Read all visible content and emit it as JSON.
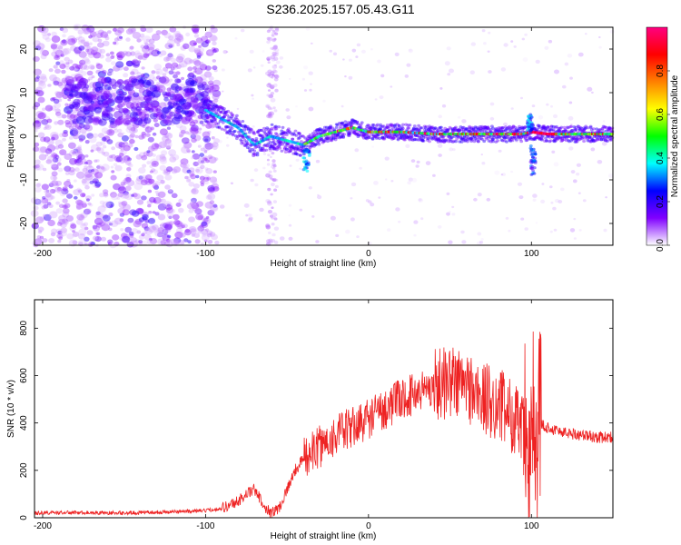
{
  "figure": {
    "title": "S236.2025.157.05.43.G11"
  },
  "chart_data": [
    {
      "type": "heatmap",
      "xlabel": "Height of straight line (km)",
      "ylabel": "Frequency (Hz)",
      "xlim": [
        -205,
        150
      ],
      "ylim": [
        -25,
        25
      ],
      "xticks": [
        -200,
        -100,
        0,
        100
      ],
      "yticks": [
        -20,
        -10,
        0,
        10,
        20
      ],
      "colorbar": {
        "label": "Normalized spectral amplitude",
        "range": [
          0,
          1
        ],
        "ticks": [
          0.0,
          0.2,
          0.4,
          0.6,
          0.8
        ],
        "tick_labels": [
          "0.0",
          "0.2",
          "0.4",
          "0.6",
          "0.8"
        ],
        "colors": [
          "#ffffff",
          "#8000ff",
          "#0000ff",
          "#00ffff",
          "#00ff00",
          "#ffff00",
          "#ff8000",
          "#ff0000",
          "#ff0080"
        ]
      },
      "ridge": {
        "x": [
          -100,
          -90,
          -80,
          -70,
          -60,
          -50,
          -40,
          -30,
          -20,
          -10,
          0,
          20,
          40,
          60,
          80,
          95,
          100,
          110,
          130,
          150
        ],
        "freq": [
          6,
          4,
          2,
          -2,
          0,
          -1,
          -2,
          0,
          1,
          2,
          1,
          1,
          0.5,
          0.5,
          0.5,
          0.5,
          1,
          0.5,
          0.5,
          0.5
        ]
      }
    },
    {
      "type": "line",
      "xlabel": "Height of straight line (km)",
      "ylabel": "SNR (10 * v/v)",
      "xlim": [
        -205,
        150
      ],
      "ylim": [
        0,
        920
      ],
      "xticks": [
        -200,
        -100,
        0,
        100
      ],
      "yticks": [
        0,
        200,
        400,
        600,
        800
      ],
      "series": [
        {
          "color": "#ee2222",
          "x": [
            -205,
            -180,
            -150,
            -120,
            -100,
            -90,
            -80,
            -75,
            -70,
            -65,
            -60,
            -55,
            -50,
            -45,
            -40,
            -30,
            -20,
            -10,
            0,
            10,
            20,
            30,
            40,
            50,
            60,
            70,
            80,
            90,
            95,
            100,
            105,
            110,
            120,
            130,
            140,
            150
          ],
          "values": [
            20,
            22,
            20,
            25,
            30,
            40,
            70,
            100,
            120,
            60,
            20,
            40,
            120,
            200,
            250,
            300,
            350,
            380,
            420,
            460,
            500,
            530,
            560,
            580,
            560,
            500,
            480,
            420,
            350,
            300,
            400,
            380,
            360,
            350,
            340,
            340
          ]
        }
      ]
    }
  ]
}
